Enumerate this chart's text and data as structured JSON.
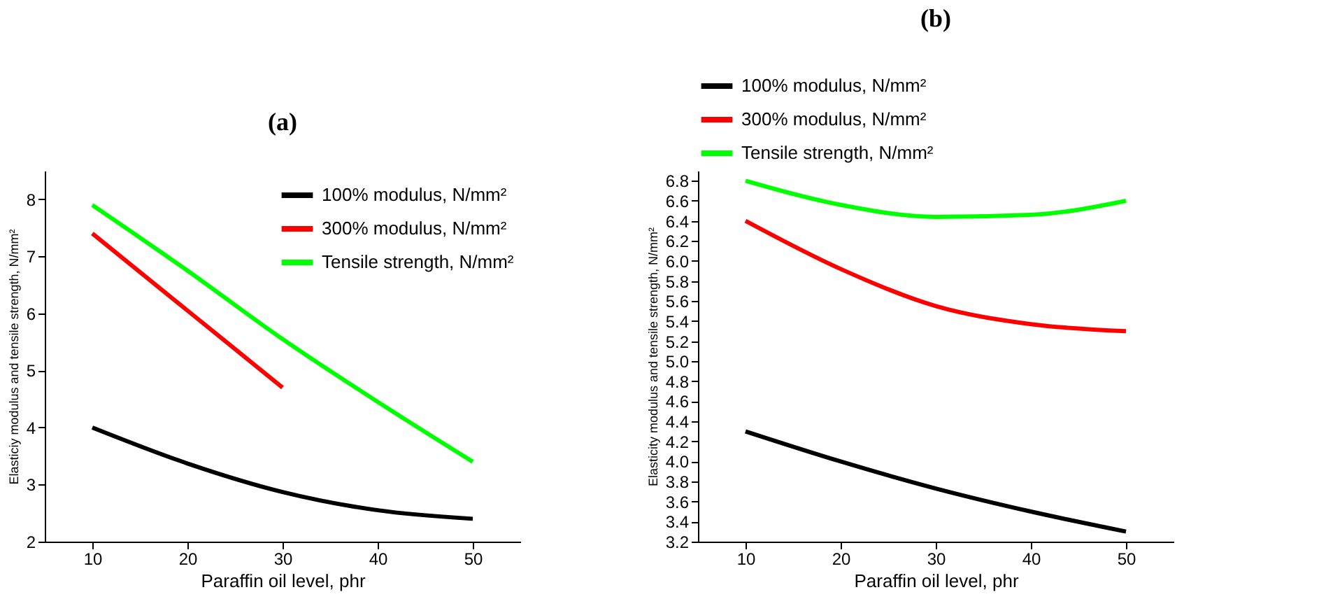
{
  "chart_data": [
    {
      "type": "line",
      "title": "(a)",
      "xlabel": "Paraffin oil level, phr",
      "ylabel": "Elasticiy modulus and tensile strength, N/mm²",
      "x": [
        10,
        20,
        30,
        40,
        50
      ],
      "xlim": [
        5,
        55
      ],
      "xticks": [
        10,
        20,
        30,
        40,
        50
      ],
      "ylim": [
        2,
        8.5
      ],
      "yticks": [
        2,
        3,
        4,
        5,
        6,
        7,
        8
      ],
      "grid": false,
      "legend": "top right",
      "marker": "none",
      "line_style": "solid",
      "series": [
        {
          "name": "100% modulus, N/mm²",
          "color": "#000000",
          "values": [
            4.0,
            3.37,
            2.87,
            2.55,
            2.4
          ]
        },
        {
          "name": "300% modulus, N/mm²",
          "color": "#ff0000",
          "values": [
            7.4,
            6.05,
            4.7,
            null,
            null
          ]
        },
        {
          "name": "Tensile strength, N/mm²",
          "color": "#00ff00",
          "values": [
            7.9,
            6.75,
            5.55,
            4.45,
            3.4
          ]
        }
      ]
    },
    {
      "type": "line",
      "title": "(b)",
      "xlabel": "Paraffin oil level, phr",
      "ylabel": "Elasticity modulus and tensile strength, N/mm²",
      "x": [
        10,
        20,
        30,
        40,
        50
      ],
      "xlim": [
        5,
        55
      ],
      "xticks": [
        10,
        20,
        30,
        40,
        50
      ],
      "ylim": [
        3.2,
        6.9
      ],
      "yticks": [
        3.2,
        3.4,
        3.6,
        3.8,
        {
          "value": 4,
          "label": "4.0"
        },
        4.2,
        4.4,
        4.6,
        4.8,
        {
          "value": 5,
          "label": "5.0"
        },
        5.2,
        5.4,
        5.6,
        5.8,
        {
          "value": 6,
          "label": "6.0"
        },
        6.2,
        6.4,
        6.6,
        6.8
      ],
      "grid": false,
      "legend": "top",
      "marker": "none",
      "line_style": "solid",
      "series": [
        {
          "name": "100% modulus, N/mm²",
          "color": "#000000",
          "values": [
            4.3,
            4.0,
            3.73,
            3.5,
            3.3
          ]
        },
        {
          "name": "300% modulus, N/mm²",
          "color": "#ff0000",
          "values": [
            6.4,
            5.92,
            5.55,
            5.37,
            5.3
          ]
        },
        {
          "name": "Tensile strength, N/mm²",
          "color": "#00ff00",
          "values": [
            6.8,
            6.56,
            6.44,
            6.46,
            6.6
          ]
        }
      ]
    }
  ]
}
